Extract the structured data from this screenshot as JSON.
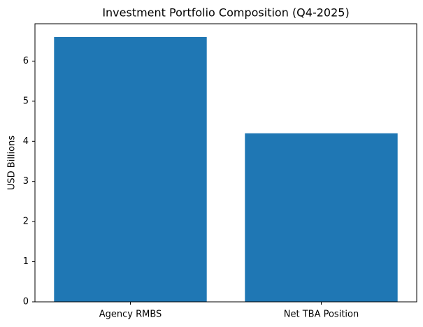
{
  "chart_data": {
    "type": "bar",
    "title": "Investment Portfolio Composition (Q4-2025)",
    "y_label": "USD Billions",
    "categories": [
      "Agency RMBS",
      "Net TBA Position"
    ],
    "values": [
      6.6,
      4.2
    ],
    "color": "#1f77b4",
    "ylim": [
      0,
      6.93
    ],
    "yticks": [
      0,
      1,
      2,
      3,
      4,
      5,
      6
    ],
    "grid": false
  }
}
